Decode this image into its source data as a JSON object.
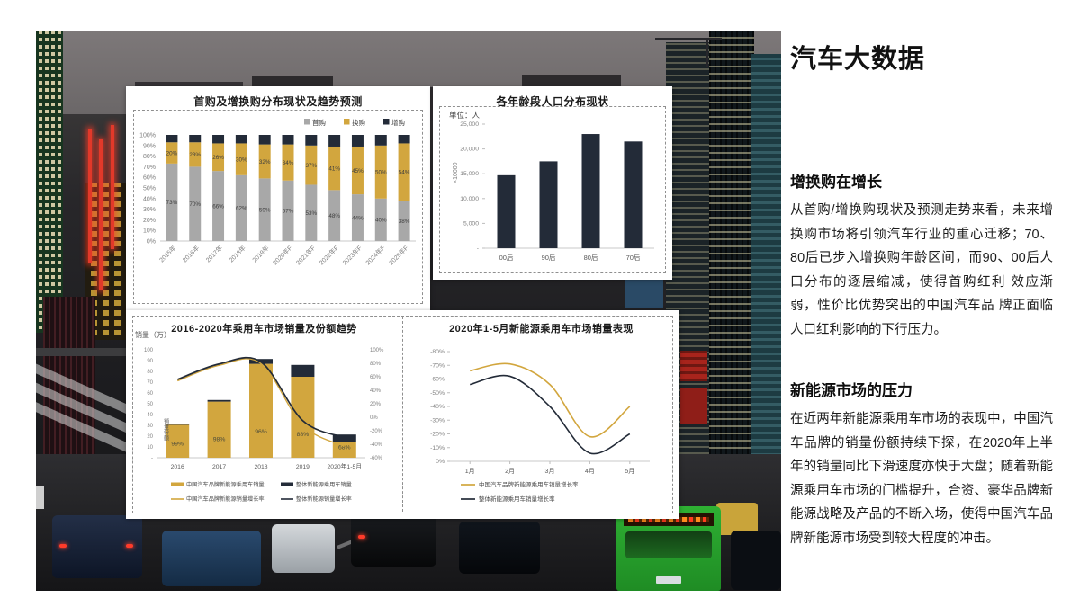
{
  "right_panel": {
    "title": "汽车大数据",
    "sections": [
      {
        "heading": "增换购在增长",
        "body": "从首购/增换购现状及预测走势来看，未来增换购市场将引领汽车行业的重心迁移；70、80后已步入增换购年龄区间，而90、00后人口分布的逐层缩减，使得首购红利 效应渐弱，性价比优势突出的中国汽车品 牌正面临人口红利影响的下行压力。"
      },
      {
        "heading": "新能源市场的压力",
        "body": "在近两年新能源乘用车市场的表现中，中国汽车品牌的销量份额持续下探，在2020年上半年的销量同比下滑速度亦快于大盘；随着新能源乘用车市场的门槛提升，合资、豪华品牌新能源战略及产品的不断入场，使得中国汽车品牌新能源市场受到较大程度的冲击。"
      }
    ]
  },
  "colors": {
    "gold": "#D2A63E",
    "navy": "#232B38",
    "gray": "#A8A8A8",
    "bus_green": "#27A02C"
  },
  "chart_data": [
    {
      "type": "bar",
      "subtype": "stacked-100",
      "title": "首购及增换购分布现状及趋势预测",
      "categories": [
        "2015年",
        "2016年",
        "2017年",
        "2018年",
        "2019年",
        "2020年F",
        "2021年F",
        "2022年F",
        "2023年F",
        "2024年F",
        "2025年F"
      ],
      "series": [
        {
          "name": "首购",
          "color_key": "gray",
          "values": [
            73,
            70,
            66,
            62,
            59,
            57,
            53,
            48,
            44,
            40,
            38
          ]
        },
        {
          "name": "换购",
          "color_key": "gold",
          "values": [
            20,
            23,
            26,
            30,
            32,
            34,
            37,
            41,
            45,
            50,
            54
          ]
        },
        {
          "name": "增购",
          "color_key": "navy",
          "values": [
            7,
            7,
            8,
            8,
            9,
            9,
            10,
            11,
            11,
            10,
            8
          ]
        }
      ],
      "label_series": [
        "首购",
        "换购"
      ],
      "ylim": [
        0,
        100
      ],
      "yticks": [
        "0%",
        "10%",
        "20%",
        "30%",
        "40%",
        "50%",
        "60%",
        "70%",
        "80%",
        "90%",
        "100%"
      ],
      "legend_position": "top-right",
      "grid": false
    },
    {
      "type": "bar",
      "title": "各年龄段人口分布现状",
      "unit_label": "单位：人",
      "ylabel_rotated": "×10000",
      "categories": [
        "00后",
        "90后",
        "80后",
        "70后"
      ],
      "values": [
        14700,
        17500,
        23000,
        21500
      ],
      "ylim": [
        0,
        25000
      ],
      "yticks": [
        "-",
        "5,000",
        "10,000",
        "15,000",
        "20,000",
        "25,000"
      ],
      "grid": false
    },
    {
      "type": "combo-bar-line",
      "title": "2016-2020年乘用车市场销量及份额趋势",
      "ylabel": "销量（万）",
      "inner_label": "销量份额",
      "categories": [
        "2016",
        "2017",
        "2018",
        "2019",
        "2020年1-5月"
      ],
      "bar_series": [
        {
          "name": "中国汽车品牌新能源乘用车销量",
          "color_key": "gold",
          "values": [
            30.5,
            52,
            87,
            75,
            15
          ]
        },
        {
          "name": "整体新能源乘用车销量",
          "color_key": "navy",
          "values": [
            31.5,
            53.5,
            91.5,
            86,
            21.5
          ]
        }
      ],
      "share_labels": [
        "99%",
        "98%",
        "96%",
        "88%",
        "68%"
      ],
      "line_series": [
        {
          "name": "中国汽车品牌新能源销量增长率",
          "color_key": "gold",
          "values": [
            54,
            77,
            80,
            -12,
            -43
          ]
        },
        {
          "name": "整体新能源销量增长率",
          "color_key": "navy",
          "values": [
            56,
            79,
            82,
            -5,
            -30
          ]
        }
      ],
      "ylim_left": [
        0,
        100
      ],
      "yticks_left": [
        "-",
        "10",
        "20",
        "30",
        "40",
        "50",
        "60",
        "70",
        "80",
        "90",
        "100"
      ],
      "ylim_right": [
        -60,
        100
      ],
      "yticks_right": [
        "-60%",
        "-40%",
        "-20%",
        "0%",
        "20%",
        "40%",
        "60%",
        "80%",
        "100%"
      ],
      "legend_position": "bottom",
      "grid": false
    },
    {
      "type": "line",
      "title": "2020年1-5月新能源乘用车市场销量表现",
      "categories": [
        "1月",
        "2月",
        "3月",
        "4月",
        "5月"
      ],
      "series": [
        {
          "name": "中国汽车品牌新能源乘用车销量增长率",
          "color_key": "gold",
          "values": [
            -66,
            -71,
            -56,
            -18,
            -40
          ]
        },
        {
          "name": "整体新能源乘用车销量增长率",
          "color_key": "navy",
          "values": [
            -56,
            -62,
            -40,
            -6,
            -20
          ]
        }
      ],
      "ylim": [
        -80,
        0
      ],
      "inverted_axis": true,
      "yticks": [
        "-80%",
        "-70%",
        "-60%",
        "-50%",
        "-40%",
        "-30%",
        "-20%",
        "-10%",
        "0%"
      ],
      "legend_position": "bottom",
      "grid": false
    }
  ]
}
